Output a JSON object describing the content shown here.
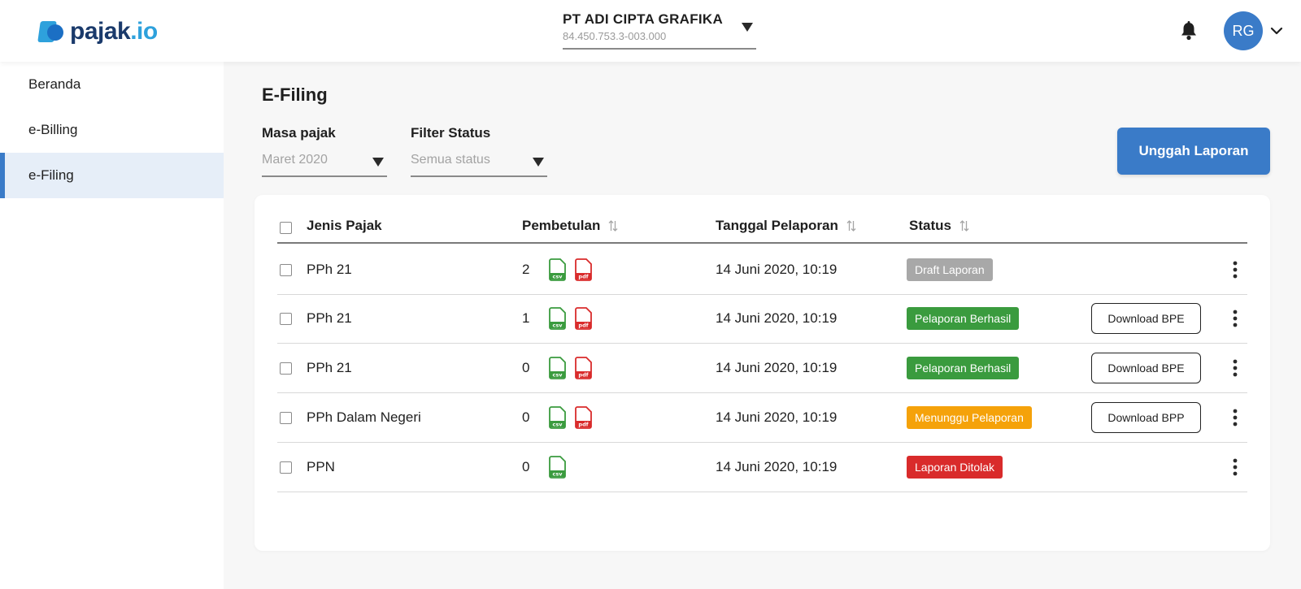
{
  "header": {
    "logo_main": "pajak",
    "logo_tld": ".io",
    "company_name": "PT ADI CIPTA GRAFIKA",
    "company_npwp": "84.450.753.3-003.000",
    "avatar_initials": "RG"
  },
  "sidebar": {
    "items": [
      {
        "label": "Beranda",
        "active": false
      },
      {
        "label": "e-Billing",
        "active": false
      },
      {
        "label": "e-Filing",
        "active": true
      }
    ]
  },
  "main": {
    "title": "E-Filing",
    "filters": {
      "masa_label": "Masa pajak",
      "masa_value": "Maret 2020",
      "status_label": "Filter Status",
      "status_value": "Semua status"
    },
    "upload_label": "Unggah Laporan"
  },
  "table": {
    "columns": [
      "Jenis Pajak",
      "Pembetulan",
      "Tanggal Pelaporan",
      "Status"
    ],
    "rows": [
      {
        "jenis": "PPh 21",
        "pembetulan": "2",
        "files": [
          "csv",
          "pdf"
        ],
        "tanggal": "14 Juni 2020, 10:19",
        "status": "Draft Laporan",
        "status_color": "#a8a8a8",
        "action": ""
      },
      {
        "jenis": "PPh 21",
        "pembetulan": "1",
        "files": [
          "csv",
          "pdf"
        ],
        "tanggal": "14 Juni 2020, 10:19",
        "status": "Pelaporan Berhasil",
        "status_color": "#3a9b3e",
        "action": "Download BPE"
      },
      {
        "jenis": "PPh 21",
        "pembetulan": "0",
        "files": [
          "csv",
          "pdf"
        ],
        "tanggal": "14 Juni 2020, 10:19",
        "status": "Pelaporan Berhasil",
        "status_color": "#3a9b3e",
        "action": "Download BPE"
      },
      {
        "jenis": "PPh Dalam Negeri",
        "pembetulan": "0",
        "files": [
          "csv",
          "pdf"
        ],
        "tanggal": "14 Juni 2020, 10:19",
        "status": "Menunggu Pelaporan",
        "status_color": "#f5a20a",
        "action": "Download BPP"
      },
      {
        "jenis": "PPN",
        "pembetulan": "0",
        "files": [
          "csv"
        ],
        "tanggal": "14 Juni 2020, 10:19",
        "status": "Laporan Ditolak",
        "status_color": "#d92b2b",
        "action": ""
      }
    ]
  },
  "colors": {
    "primary": "#3a7bc8",
    "csv": "#3a9b3e",
    "pdf": "#d92b2b"
  }
}
